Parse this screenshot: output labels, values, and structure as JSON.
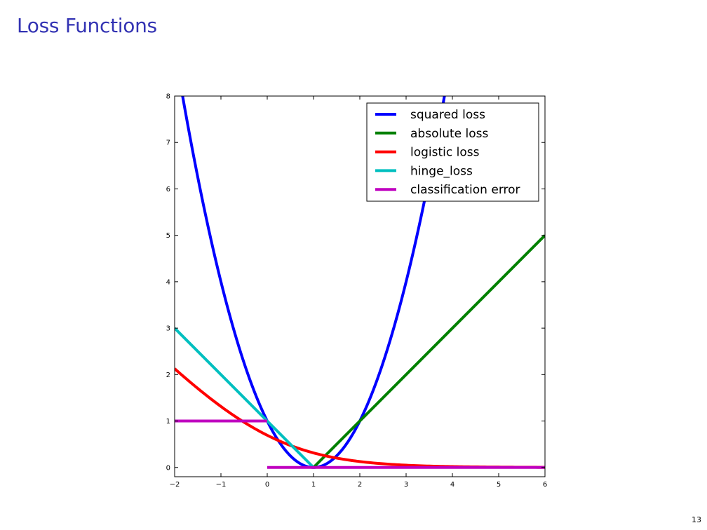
{
  "slide": {
    "title": "Loss Functions",
    "page_number": "13"
  },
  "chart_data": {
    "type": "line",
    "title": "",
    "xlabel": "",
    "ylabel": "",
    "xlim": [
      -2,
      6
    ],
    "ylim": [
      -0.2,
      8
    ],
    "x_ticks": [
      -2,
      -1,
      0,
      1,
      2,
      3,
      4,
      5,
      6
    ],
    "x_tick_labels": [
      "−2",
      "−1",
      "0",
      "1",
      "2",
      "3",
      "4",
      "5",
      "6"
    ],
    "y_ticks": [
      0,
      1,
      2,
      3,
      4,
      5,
      6,
      7,
      8
    ],
    "y_tick_labels": [
      "0",
      "1",
      "2",
      "3",
      "4",
      "5",
      "6",
      "7",
      "8"
    ],
    "grid": false,
    "legend_position": "top-right",
    "series": [
      {
        "name": "squared loss",
        "color": "#0000ff",
        "segments": [
          [
            [
              -1.86,
              8
            ],
            [
              -1.5,
              6.25
            ],
            [
              -1.0,
              4.0
            ],
            [
              -0.5,
              2.25
            ],
            [
              0.0,
              1.0
            ],
            [
              0.5,
              0.25
            ],
            [
              1.0,
              0.0
            ],
            [
              1.5,
              0.25
            ],
            [
              2.0,
              1.0
            ],
            [
              2.5,
              2.25
            ],
            [
              3.0,
              4.0
            ],
            [
              3.5,
              6.25
            ],
            [
              3.83,
              8
            ]
          ]
        ]
      },
      {
        "name": "absolute loss",
        "color": "#008000",
        "segments": [
          [
            [
              1.0,
              0.0
            ],
            [
              6.0,
              5.0
            ]
          ]
        ]
      },
      {
        "name": "logistic loss",
        "color": "#ff0000",
        "segments": [
          [
            [
              -2.0,
              2.13
            ],
            [
              -1.5,
              1.7
            ],
            [
              -1.0,
              1.31
            ],
            [
              -0.5,
              0.97
            ],
            [
              0.0,
              0.69
            ],
            [
              0.5,
              0.47
            ],
            [
              1.0,
              0.31
            ],
            [
              1.5,
              0.2
            ],
            [
              2.0,
              0.13
            ],
            [
              2.5,
              0.08
            ],
            [
              3.0,
              0.05
            ],
            [
              4.0,
              0.02
            ],
            [
              5.0,
              0.01
            ],
            [
              6.0,
              0.0
            ]
          ]
        ]
      },
      {
        "name": "hinge_loss",
        "color": "#00bfbf",
        "segments": [
          [
            [
              -2.0,
              3.0
            ],
            [
              1.0,
              0.0
            ]
          ]
        ]
      },
      {
        "name": "classification error",
        "color": "#bf00bf",
        "segments": [
          [
            [
              -2.0,
              1.0
            ],
            [
              0.0,
              1.0
            ]
          ],
          [
            [
              0.0,
              0.0
            ],
            [
              6.0,
              0.0
            ]
          ]
        ]
      }
    ]
  }
}
